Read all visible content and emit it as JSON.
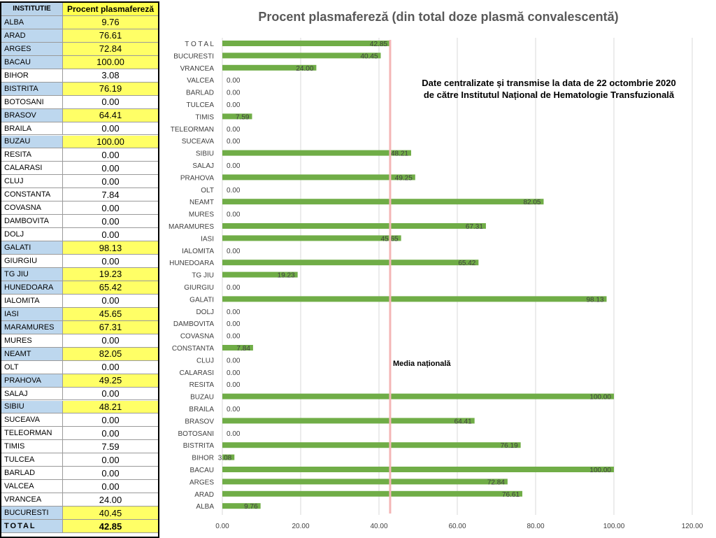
{
  "table": {
    "header": {
      "name": "INSTITUTIE",
      "value": "Procent plasmafereză"
    },
    "rows": [
      {
        "name": "ALBA",
        "value": "9.76",
        "hl": true
      },
      {
        "name": "ARAD",
        "value": "76.61",
        "hl": true
      },
      {
        "name": "ARGES",
        "value": "72.84",
        "hl": true
      },
      {
        "name": "BACAU",
        "value": "100.00",
        "hl": true
      },
      {
        "name": "BIHOR",
        "value": "3.08",
        "hl": false
      },
      {
        "name": "BISTRITA",
        "value": "76.19",
        "hl": true
      },
      {
        "name": "BOTOSANI",
        "value": "0.00",
        "hl": false
      },
      {
        "name": "BRASOV",
        "value": "64.41",
        "hl": true
      },
      {
        "name": "BRAILA",
        "value": "0.00",
        "hl": false
      },
      {
        "name": "BUZAU",
        "value": "100.00",
        "hl": true
      },
      {
        "name": "RESITA",
        "value": "0.00",
        "hl": false
      },
      {
        "name": "CALARASI",
        "value": "0.00",
        "hl": false
      },
      {
        "name": "CLUJ",
        "value": "0.00",
        "hl": false
      },
      {
        "name": "CONSTANTA",
        "value": "7.84",
        "hl": false
      },
      {
        "name": "COVASNA",
        "value": "0.00",
        "hl": false
      },
      {
        "name": "DAMBOVITA",
        "value": "0.00",
        "hl": false
      },
      {
        "name": "DOLJ",
        "value": "0.00",
        "hl": false
      },
      {
        "name": "GALATI",
        "value": "98.13",
        "hl": true
      },
      {
        "name": "GIURGIU",
        "value": "0.00",
        "hl": false
      },
      {
        "name": "TG JIU",
        "value": "19.23",
        "hl": true
      },
      {
        "name": "HUNEDOARA",
        "value": "65.42",
        "hl": true
      },
      {
        "name": "IALOMITA",
        "value": "0.00",
        "hl": false
      },
      {
        "name": "IASI",
        "value": "45.65",
        "hl": true
      },
      {
        "name": "MARAMURES",
        "value": "67.31",
        "hl": true
      },
      {
        "name": "MURES",
        "value": "0.00",
        "hl": false
      },
      {
        "name": "NEAMT",
        "value": "82.05",
        "hl": true
      },
      {
        "name": "OLT",
        "value": "0.00",
        "hl": false
      },
      {
        "name": "PRAHOVA",
        "value": "49.25",
        "hl": true
      },
      {
        "name": "SALAJ",
        "value": "0.00",
        "hl": false
      },
      {
        "name": "SIBIU",
        "value": "48.21",
        "hl": true
      },
      {
        "name": "SUCEAVA",
        "value": "0.00",
        "hl": false
      },
      {
        "name": "TELEORMAN",
        "value": "0.00",
        "hl": false
      },
      {
        "name": "TIMIS",
        "value": "7.59",
        "hl": false
      },
      {
        "name": "TULCEA",
        "value": "0.00",
        "hl": false
      },
      {
        "name": "BARLAD",
        "value": "0.00",
        "hl": false
      },
      {
        "name": "VALCEA",
        "value": "0.00",
        "hl": false
      },
      {
        "name": "VRANCEA",
        "value": "24.00",
        "hl": false
      },
      {
        "name": "BUCURESTI",
        "value": "40.45",
        "hl": true
      }
    ],
    "total": {
      "name": "TOTAL",
      "value": "42.85"
    }
  },
  "note": "Date centralizate și transmise la data de 22 octombrie 2020 de către Institutul Național de Hematologie Transfuzională",
  "media_label": "Media națională",
  "colors": {
    "bar": "#70ad47",
    "media_line": "#f4b6b6",
    "grid": "#d9d9d9",
    "label_text": "#404040",
    "title_text": "#595959"
  },
  "chart_data": {
    "type": "bar",
    "orientation": "horizontal",
    "title": "Procent plasmafereză (din total doze plasmă convalescentă)",
    "categories": [
      "ALBA",
      "ARAD",
      "ARGES",
      "BACAU",
      "BIHOR",
      "BISTRITA",
      "BOTOSANI",
      "BRASOV",
      "BRAILA",
      "BUZAU",
      "RESITA",
      "CALARASI",
      "CLUJ",
      "CONSTANTA",
      "COVASNA",
      "DAMBOVITA",
      "DOLJ",
      "GALATI",
      "GIURGIU",
      "TG JIU",
      "HUNEDOARA",
      "IALOMITA",
      "IASI",
      "MARAMURES",
      "MURES",
      "NEAMT",
      "OLT",
      "PRAHOVA",
      "SALAJ",
      "SIBIU",
      "SUCEAVA",
      "TELEORMAN",
      "TIMIS",
      "TULCEA",
      "BARLAD",
      "VALCEA",
      "VRANCEA",
      "BUCURESTI",
      "T O T A L"
    ],
    "values": [
      9.76,
      76.61,
      72.84,
      100.0,
      3.08,
      76.19,
      0.0,
      64.41,
      0.0,
      100.0,
      0.0,
      0.0,
      0.0,
      7.84,
      0.0,
      0.0,
      0.0,
      98.13,
      0.0,
      19.23,
      65.42,
      0.0,
      45.65,
      67.31,
      0.0,
      82.05,
      0.0,
      49.25,
      0.0,
      48.21,
      0.0,
      0.0,
      7.59,
      0.0,
      0.0,
      0.0,
      24.0,
      40.45,
      42.85
    ],
    "data_labels": [
      "9.76",
      "76.61",
      "72.84",
      "100.00",
      "3.08",
      "76.19",
      "0.00",
      "64.41",
      "0.00",
      "100.00",
      "0.00",
      "0.00",
      "0.00",
      "7.84",
      "0.00",
      "0.00",
      "0.00",
      "98.13",
      "0.00",
      "19.23",
      "65.42",
      "0.00",
      "45.65",
      "67.31",
      "0.00",
      "82.05",
      "0.00",
      "49.25",
      "0.00",
      "48.21",
      "0.00",
      "0.00",
      "7.59",
      "0.00",
      "0.00",
      "0.00",
      "24.00",
      "40.45",
      "42.85"
    ],
    "xlim": [
      0,
      120
    ],
    "xticks": [
      0,
      20,
      40,
      60,
      80,
      100,
      120
    ],
    "xtick_labels": [
      "0.00",
      "20.00",
      "40.00",
      "60.00",
      "80.00",
      "100.00",
      "120.00"
    ],
    "media_nationala": 42.85,
    "grid": true,
    "legend": "none"
  }
}
